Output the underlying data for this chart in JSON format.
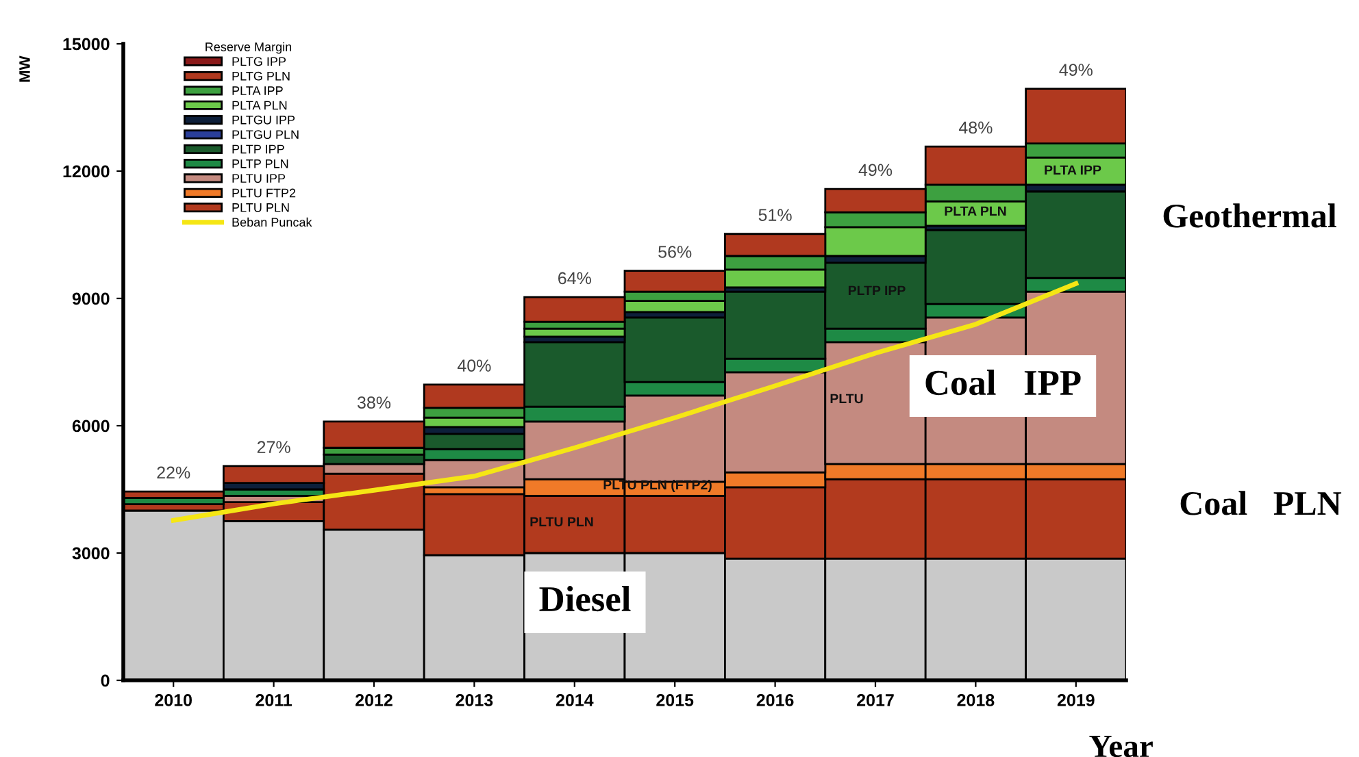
{
  "chart_data": {
    "type": "bar",
    "stacked": true,
    "ylabel": "MW",
    "xlabel": "Year",
    "legend_title": "Reserve Margin",
    "legend": "top left",
    "grid": false,
    "categories": [
      "2010",
      "2011",
      "2012",
      "2013",
      "2014",
      "2015",
      "2016",
      "2017",
      "2018",
      "2019"
    ],
    "ylim": [
      0,
      15000
    ],
    "yticks": [
      0,
      3000,
      6000,
      9000,
      12000,
      15000
    ],
    "series": [
      {
        "color": "#c9c9c9",
        "values": [
          4000,
          3750,
          3550,
          2950,
          3000,
          3000,
          2870,
          2870,
          2870,
          2870
        ]
      },
      {
        "name": "PLTU PLN",
        "color": "#b23a1e",
        "values": [
          150,
          450,
          1320,
          1440,
          1350,
          1350,
          1680,
          1870,
          1870,
          1870
        ]
      },
      {
        "name": "PLTU FTP2",
        "color": "#f07a28",
        "values": [
          null,
          null,
          null,
          160,
          390,
          330,
          350,
          360,
          360,
          360
        ]
      },
      {
        "name": "PLTU IPP",
        "color": "#c48a80",
        "values": [
          null,
          150,
          230,
          640,
          1360,
          2030,
          2360,
          2870,
          3450,
          4060
        ]
      },
      {
        "name": "PLTP PLN",
        "color": "#1e8a45",
        "values": [
          150,
          150,
          null,
          260,
          350,
          320,
          320,
          320,
          320,
          320
        ]
      },
      {
        "name": "PLTP IPP",
        "color": "#1a5a2c",
        "values": [
          null,
          null,
          220,
          360,
          1520,
          1520,
          1580,
          1550,
          1740,
          2040
        ]
      },
      {
        "name": "PLTGU PLN",
        "color": "#2a3f9a",
        "values": [
          null,
          null,
          null,
          null,
          null,
          null,
          null,
          null,
          null,
          null
        ]
      },
      {
        "name": "PLTGU IPP",
        "color": "#0d1f3a",
        "values": [
          null,
          150,
          null,
          160,
          130,
          130,
          100,
          160,
          100,
          160
        ]
      },
      {
        "name": "PLTA PLN",
        "color": "#6cc94a",
        "values": [
          null,
          null,
          null,
          220,
          190,
          260,
          420,
          680,
          580,
          640
        ]
      },
      {
        "name": "PLTA IPP",
        "color": "#3da040",
        "values": [
          null,
          null,
          160,
          230,
          160,
          220,
          320,
          350,
          390,
          330
        ]
      },
      {
        "name": "PLTG PLN",
        "color": "#b0391f",
        "values": [
          150,
          400,
          620,
          550,
          580,
          490,
          520,
          550,
          900,
          1290
        ]
      },
      {
        "name": "PLTG IPP",
        "color": "#8b1a1a",
        "values": [
          null,
          null,
          null,
          null,
          null,
          null,
          null,
          null,
          null,
          null
        ]
      },
      {
        "name": "Beban Puncak",
        "type": "line",
        "color": "#f5e614",
        "marker": "none",
        "values": [
          3770,
          4160,
          4480,
          4810,
          5480,
          6190,
          6940,
          7710,
          8390,
          9350
        ]
      }
    ],
    "annotations": [
      {
        "text": "22%",
        "x": "2010",
        "y": 4450
      },
      {
        "text": "27%",
        "x": "2011",
        "y": 5050
      },
      {
        "text": "38%",
        "x": "2012",
        "y": 6100
      },
      {
        "text": "40%",
        "x": "2013",
        "y": 6970
      },
      {
        "text": "64%",
        "x": "2014",
        "y": 9030
      },
      {
        "text": "56%",
        "x": "2015",
        "y": 9650
      },
      {
        "text": "51%",
        "x": "2016",
        "y": 10520
      },
      {
        "text": "49%",
        "x": "2017",
        "y": 11580
      },
      {
        "text": "48%",
        "x": "2018",
        "y": 12580
      },
      {
        "text": "49%",
        "x": "2019",
        "y": 13940
      },
      "PLTU PLN",
      "PLTU PLN (FTP2)",
      "PLTU",
      "PLTP IPP",
      "PLTA PLN",
      "PLTA IPP",
      "Diesel",
      "Coal   IPP",
      "Geothermal",
      "Coal   PLN"
    ]
  }
}
